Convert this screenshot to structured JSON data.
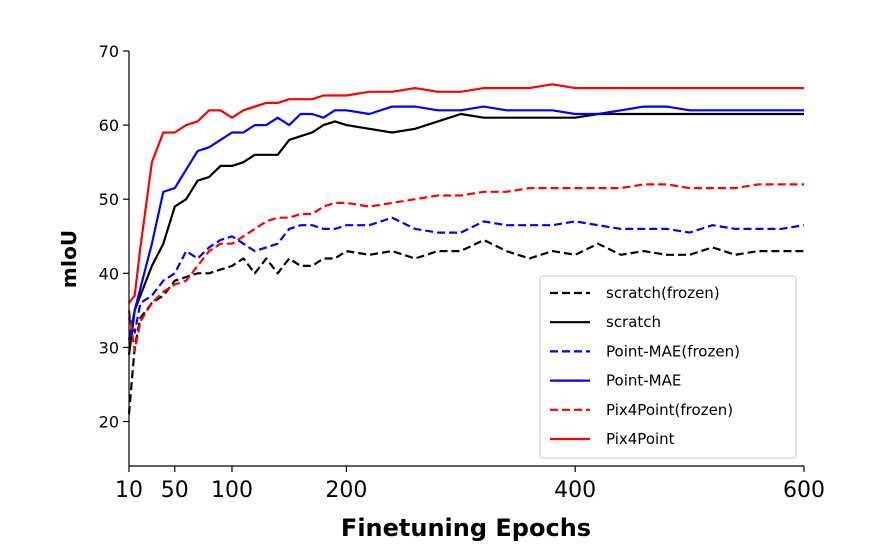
{
  "chart_data": {
    "type": "line",
    "xlabel": "Finetuning Epochs",
    "ylabel": "mIoU",
    "xlim": [
      10,
      600
    ],
    "ylim": [
      14,
      70
    ],
    "x_ticks": [
      10,
      50,
      100,
      200,
      400,
      600
    ],
    "y_ticks": [
      20,
      30,
      40,
      50,
      60,
      70
    ],
    "grid": false,
    "legend_position": "bottom-right",
    "series": [
      {
        "name": "scratch(frozen)",
        "color": "#000000",
        "style": "dashed",
        "x": [
          10,
          15,
          20,
          30,
          40,
          50,
          60,
          70,
          80,
          90,
          100,
          110,
          120,
          130,
          140,
          150,
          160,
          170,
          180,
          190,
          200,
          220,
          240,
          260,
          280,
          300,
          320,
          340,
          360,
          380,
          400,
          420,
          440,
          460,
          480,
          500,
          520,
          540,
          560,
          580,
          600
        ],
        "values": [
          21,
          30,
          34,
          36,
          37,
          39,
          39.5,
          40,
          40,
          40.5,
          41,
          42,
          40,
          42,
          40,
          42,
          41,
          41,
          42,
          42,
          43,
          42.5,
          43,
          42,
          43,
          43,
          44.5,
          43,
          42,
          43,
          42.5,
          44,
          42.5,
          43,
          42.5,
          42.5,
          43.5,
          42.5,
          43,
          43,
          43
        ]
      },
      {
        "name": "scratch",
        "color": "#000000",
        "style": "solid",
        "x": [
          10,
          15,
          20,
          30,
          40,
          50,
          60,
          70,
          80,
          90,
          100,
          110,
          120,
          130,
          140,
          150,
          160,
          170,
          180,
          190,
          200,
          220,
          240,
          260,
          280,
          300,
          320,
          340,
          360,
          380,
          400,
          420,
          440,
          460,
          480,
          500,
          520,
          540,
          560,
          580,
          600
        ],
        "values": [
          29,
          35,
          37,
          41,
          44,
          49,
          50,
          52.5,
          53,
          54.5,
          54.5,
          55,
          56,
          56,
          56,
          58,
          58.5,
          59,
          60,
          60.5,
          60,
          59.5,
          59,
          59.5,
          60.5,
          61.5,
          61,
          61,
          61,
          61,
          61,
          61.5,
          61.5,
          61.5,
          61.5,
          61.5,
          61.5,
          61.5,
          61.5,
          61.5,
          61.5
        ]
      },
      {
        "name": "Point-MAE(frozen)",
        "color": "#0000ff",
        "style": "dashed",
        "x": [
          10,
          15,
          20,
          30,
          40,
          50,
          60,
          70,
          80,
          90,
          100,
          110,
          120,
          130,
          140,
          150,
          160,
          170,
          180,
          190,
          200,
          220,
          240,
          260,
          280,
          300,
          320,
          340,
          360,
          380,
          400,
          420,
          440,
          460,
          480,
          500,
          520,
          540,
          560,
          580,
          600
        ],
        "values": [
          34,
          32,
          36,
          37,
          39,
          40,
          43,
          42,
          43.5,
          44.5,
          45,
          44,
          43,
          43.5,
          44,
          46,
          46.5,
          46.5,
          46,
          46,
          46.5,
          46.5,
          47.5,
          46,
          45.5,
          45.5,
          47,
          46.5,
          46.5,
          46.5,
          47,
          46.5,
          46,
          46,
          46,
          45.5,
          46.5,
          46,
          46,
          46,
          46.5
        ]
      },
      {
        "name": "Point-MAE",
        "color": "#0000ff",
        "style": "solid",
        "x": [
          10,
          15,
          20,
          30,
          40,
          50,
          60,
          70,
          80,
          90,
          100,
          110,
          120,
          130,
          140,
          150,
          160,
          170,
          180,
          190,
          200,
          220,
          240,
          260,
          280,
          300,
          320,
          340,
          360,
          380,
          400,
          420,
          440,
          460,
          480,
          500,
          520,
          540,
          560,
          580,
          600
        ],
        "values": [
          31,
          35,
          38,
          44,
          51,
          51.5,
          54,
          56.5,
          57,
          58,
          59,
          59,
          60,
          60,
          61,
          60,
          61.5,
          61.5,
          61,
          62,
          62,
          61.5,
          62.5,
          62.5,
          62,
          62,
          62.5,
          62,
          62,
          62,
          61.5,
          61.5,
          62,
          62.5,
          62.5,
          62,
          62,
          62,
          62,
          62,
          62
        ]
      },
      {
        "name": "Pix4Point(frozen)",
        "color": "#ff0000",
        "style": "dashed",
        "x": [
          10,
          15,
          20,
          30,
          40,
          50,
          60,
          70,
          80,
          90,
          100,
          110,
          120,
          130,
          140,
          150,
          160,
          170,
          180,
          190,
          200,
          220,
          240,
          260,
          280,
          300,
          320,
          340,
          360,
          380,
          400,
          420,
          440,
          460,
          480,
          500,
          520,
          540,
          560,
          580,
          600
        ],
        "values": [
          35,
          29.5,
          33.5,
          36,
          37.5,
          38.5,
          39,
          41,
          43,
          44,
          44,
          45,
          46,
          47,
          47.5,
          47.5,
          48,
          48,
          49,
          49.5,
          49.5,
          49,
          49.5,
          50,
          50.5,
          50.5,
          51,
          51,
          51.5,
          51.5,
          51.5,
          51.5,
          51.5,
          52,
          52,
          51.5,
          51.5,
          51.5,
          52,
          52,
          52
        ]
      },
      {
        "name": "Pix4Point",
        "color": "#ff0000",
        "style": "solid",
        "x": [
          10,
          15,
          20,
          30,
          40,
          50,
          60,
          70,
          80,
          90,
          100,
          110,
          120,
          130,
          140,
          150,
          160,
          170,
          180,
          190,
          200,
          220,
          240,
          260,
          280,
          300,
          320,
          340,
          360,
          380,
          400,
          420,
          440,
          460,
          480,
          500,
          520,
          540,
          560,
          580,
          600
        ],
        "values": [
          36,
          37,
          43.5,
          55,
          59,
          59,
          60,
          60.5,
          62,
          62,
          61,
          62,
          62.5,
          63,
          63,
          63.5,
          63.5,
          63.5,
          64,
          64,
          64,
          64.5,
          64.5,
          65,
          64.5,
          64.5,
          65,
          65,
          65,
          65.5,
          65,
          65,
          65,
          65,
          65,
          65,
          65,
          65,
          65,
          65,
          65
        ]
      }
    ]
  }
}
